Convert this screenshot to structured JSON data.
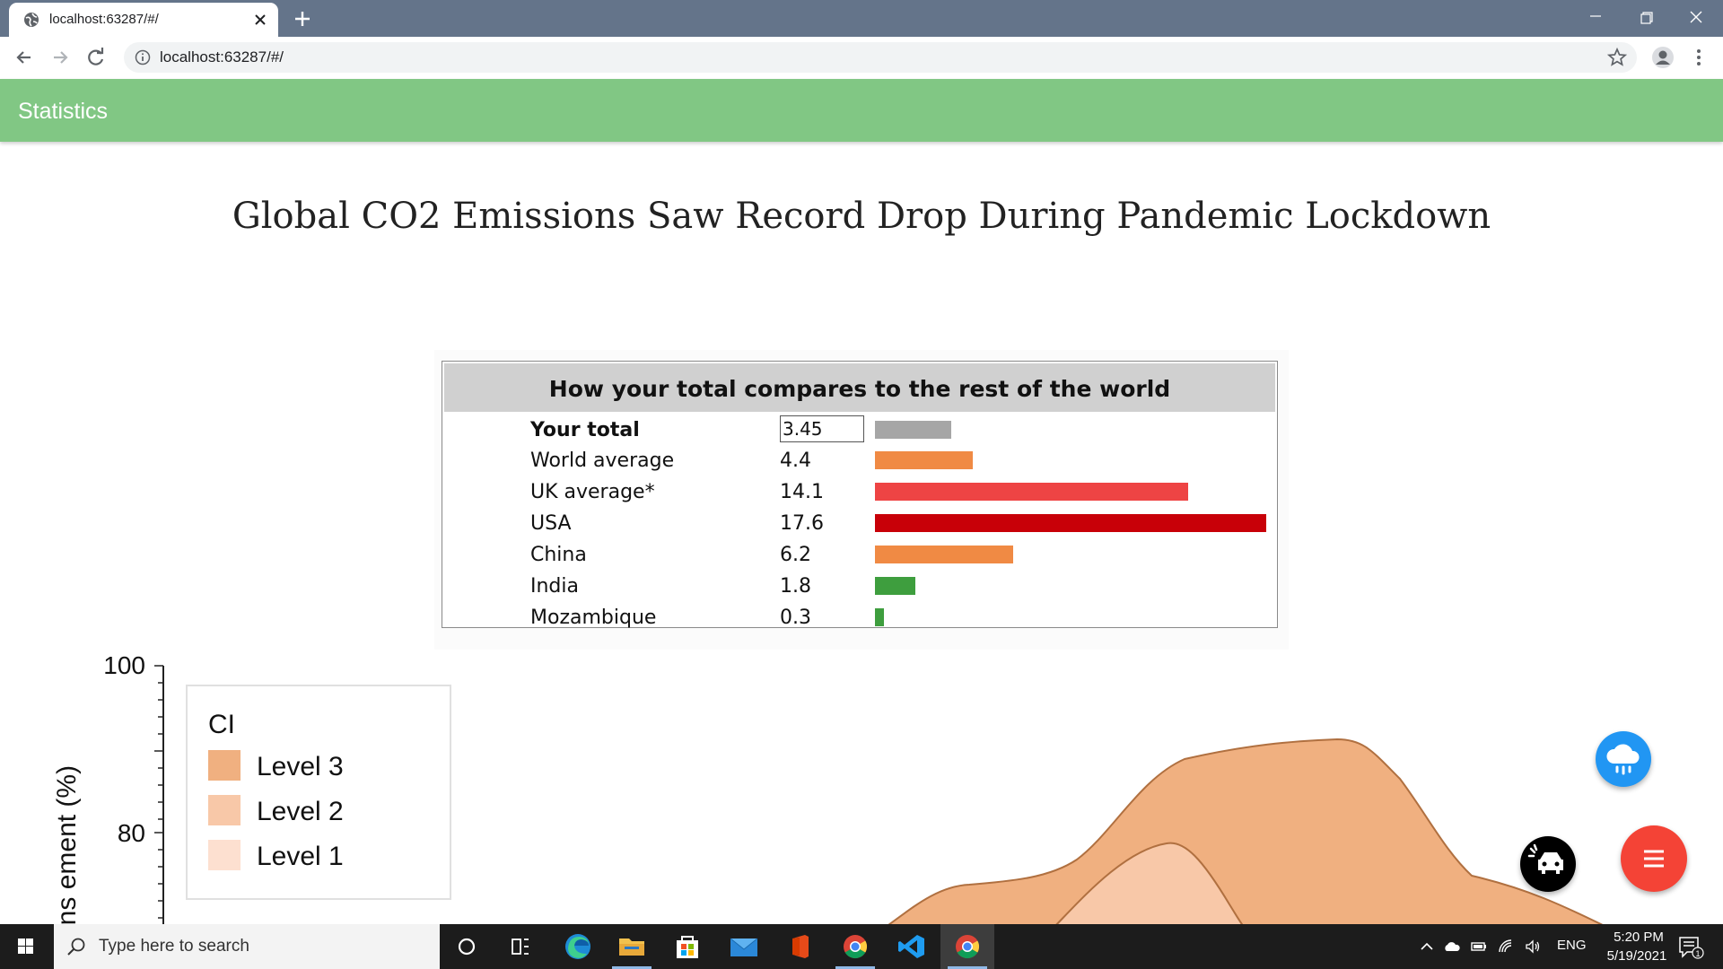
{
  "browser": {
    "tab_title": "localhost:63287/#/",
    "url": "localhost:63287/#/"
  },
  "app": {
    "title": "Statistics",
    "headline": "Global CO2 Emissions Saw Record Drop During Pandemic Lockdown"
  },
  "comparison": {
    "title": "How your total compares to the rest of the world",
    "your_total": {
      "label": "Your total",
      "value": "3.45",
      "color": "#a6a6a6"
    },
    "rows": [
      {
        "label": "World average",
        "value": "4.4",
        "color": "#f08a44"
      },
      {
        "label": "UK average*",
        "value": "14.1",
        "color": "#ee4444"
      },
      {
        "label": "USA",
        "value": "17.6",
        "color": "#c80008"
      },
      {
        "label": "China",
        "value": "6.2",
        "color": "#f08a44"
      },
      {
        "label": "India",
        "value": "1.8",
        "color": "#3e9e3e"
      },
      {
        "label": "Mozambique",
        "value": "0.3",
        "color": "#3e9e3e"
      }
    ]
  },
  "chart_data": {
    "type": "area",
    "ylabel_visible": "ons ement (%)",
    "y_ticks": [
      "100",
      "80"
    ],
    "legend": {
      "title": "CI",
      "position": "top-left",
      "items": [
        {
          "label": "Level 3",
          "color": "#f0b080"
        },
        {
          "label": "Level 2",
          "color": "#f8c8a8"
        },
        {
          "label": "Level 1",
          "color": "#fde0d0"
        }
      ]
    },
    "series_colors": {
      "outer": "#f0b080",
      "inner": "#f8c8a8",
      "line": "#b07040"
    }
  },
  "fabs": {
    "weather_color": "#2196f3",
    "vehicle_color": "#000000",
    "menu_color": "#f44336"
  },
  "taskbar": {
    "search_placeholder": "Type here to search",
    "language": "ENG",
    "time": "5:20 PM",
    "date": "5/19/2021",
    "notification_count": "1"
  }
}
